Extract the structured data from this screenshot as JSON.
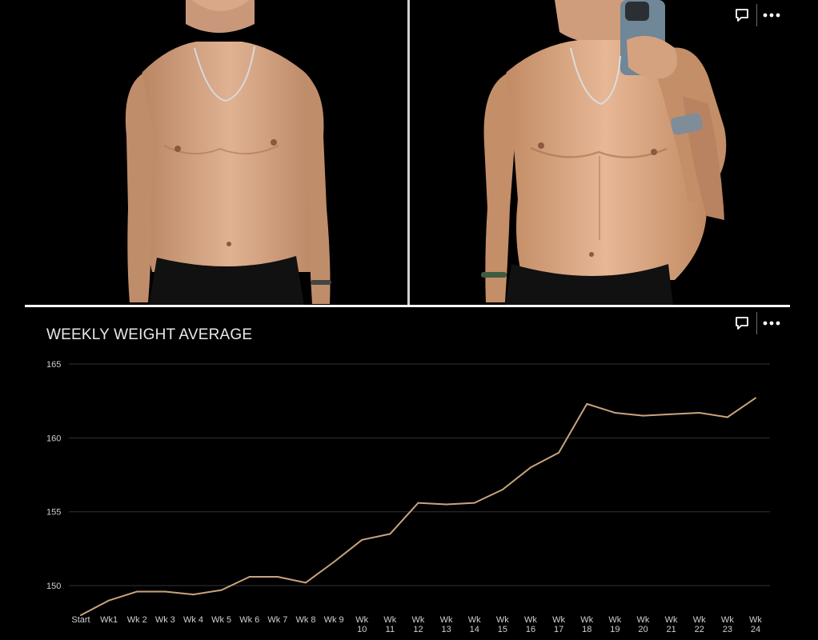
{
  "photos": {
    "before_label": "",
    "after_label": ""
  },
  "actions": {
    "comment_icon": "speech-bubble-icon",
    "more_icon": "ellipsis-icon"
  },
  "chart_data": {
    "type": "line",
    "title": "WEEKLY WEIGHT AVERAGE",
    "xlabel": "",
    "ylabel": "",
    "ylim": [
      148,
      165
    ],
    "yticks": [
      150,
      155,
      160,
      165
    ],
    "grid": true,
    "line_color": "#c9a47e",
    "grid_color": "#333333",
    "categories": [
      [
        "Start"
      ],
      [
        "Wk1"
      ],
      [
        "Wk 2"
      ],
      [
        "Wk 3"
      ],
      [
        "Wk 4"
      ],
      [
        "Wk 5"
      ],
      [
        "Wk 6"
      ],
      [
        "Wk 7"
      ],
      [
        "Wk 8"
      ],
      [
        "Wk 9"
      ],
      [
        "Wk",
        "10"
      ],
      [
        "Wk",
        "11"
      ],
      [
        "Wk",
        "12"
      ],
      [
        "Wk",
        "13"
      ],
      [
        "Wk",
        "14"
      ],
      [
        "Wk",
        "15"
      ],
      [
        "Wk",
        "16"
      ],
      [
        "Wk",
        "17"
      ],
      [
        "Wk",
        "18"
      ],
      [
        "Wk",
        "19"
      ],
      [
        "Wk",
        "20"
      ],
      [
        "Wk",
        "21"
      ],
      [
        "Wk",
        "22"
      ],
      [
        "Wk",
        "23"
      ],
      [
        "Wk",
        "24"
      ]
    ],
    "values": [
      148.0,
      149.0,
      149.6,
      149.6,
      149.4,
      149.7,
      150.6,
      150.6,
      150.2,
      151.6,
      153.1,
      153.5,
      155.6,
      155.5,
      155.6,
      156.5,
      158.0,
      159.0,
      162.3,
      161.7,
      161.5,
      161.6,
      161.7,
      161.4,
      162.7
    ]
  }
}
